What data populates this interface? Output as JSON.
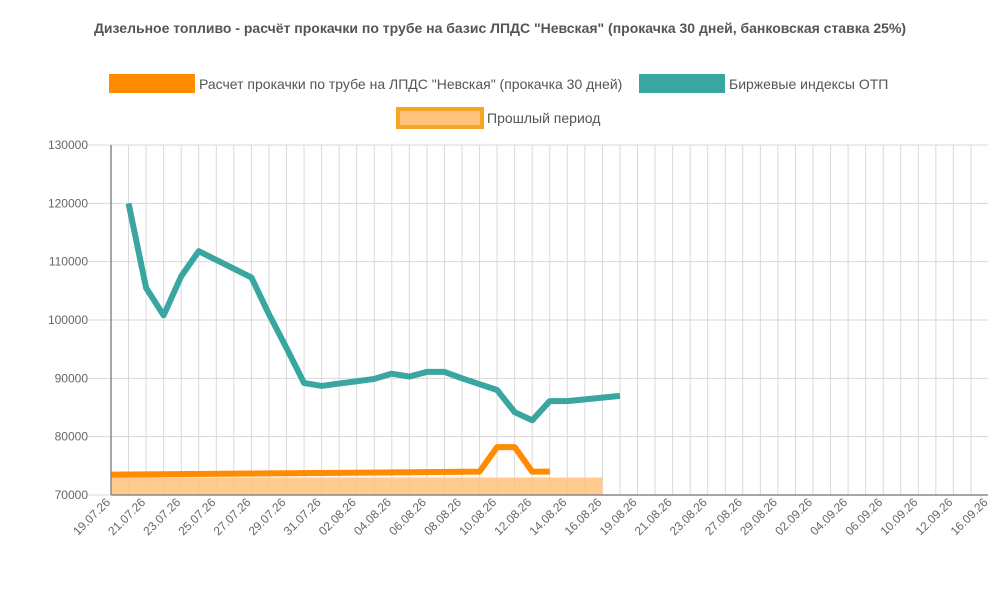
{
  "chart_data": {
    "type": "line",
    "title": "Дизельное топливо - расчёт прокачки по трубе на базис ЛПДС \"Невская\" (прокачка 30 дней, банковская ставка 25%)",
    "xlabel": "",
    "ylabel": "",
    "ylim": [
      70000,
      130000
    ],
    "yticks": [
      "130000",
      "120000",
      "110000",
      "100000",
      "90000",
      "80000",
      "70000"
    ],
    "x_ticks": [
      "19.07.26",
      "21.07.26",
      "23.07.26",
      "25.07.26",
      "27.07.26",
      "29.07.26",
      "31.07.26",
      "02.08.26",
      "04.08.26",
      "06.08.26",
      "08.08.26",
      "10.08.26",
      "12.08.26",
      "14.08.26",
      "16.08.26",
      "19.08.26",
      "21.08.26",
      "23.08.26",
      "27.08.26",
      "29.08.26",
      "02.09.26",
      "04.09.26",
      "06.09.26",
      "10.09.26",
      "12.09.26",
      "16.09.26"
    ],
    "legend_placement": "top",
    "grid": true,
    "series": [
      {
        "name": "Расчет прокачки по трубе на ЛПДС \"Невская\" (прокачка 30 дней)",
        "color": "#ff8c00",
        "style": "line",
        "x": [
          0,
          21,
          22,
          23,
          24,
          25
        ],
        "values": [
          73500,
          74000,
          78200,
          78200,
          74000,
          74000
        ]
      },
      {
        "name": "Биржевые индексы ОТП",
        "color": "#3aa6a1",
        "style": "line",
        "x": [
          1,
          2,
          3,
          4,
          5,
          6,
          7,
          8,
          9,
          10,
          11,
          12,
          13,
          14,
          15,
          16,
          17,
          18,
          19,
          20,
          21,
          22,
          23,
          24,
          25,
          26,
          27,
          28,
          29
        ],
        "values": [
          120000,
          105500,
          100800,
          107500,
          111800,
          110300,
          108800,
          107300,
          101000,
          95200,
          89200,
          88700,
          89100,
          89500,
          89900,
          90800,
          90300,
          91100,
          91100,
          90000,
          89000,
          88000,
          84200,
          82800,
          86100,
          86100,
          86400,
          86700,
          87000
        ]
      },
      {
        "name": "Прошлый период",
        "color": "#f5a623",
        "fill": "#ffc27a",
        "style": "area",
        "x": [
          0,
          28
        ],
        "values": [
          73000,
          73000
        ]
      }
    ]
  }
}
